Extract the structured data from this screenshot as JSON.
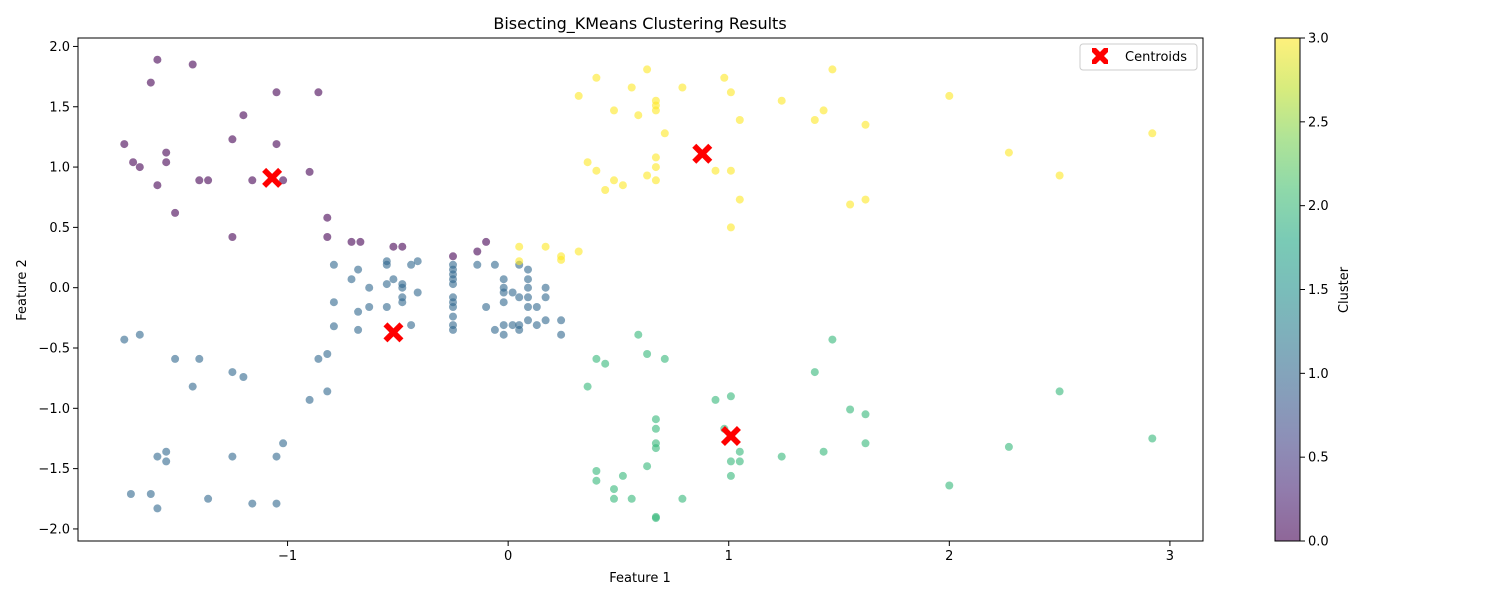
{
  "chart_data": {
    "type": "scatter",
    "title": "Bisecting_KMeans Clustering Results",
    "xlabel": "Feature 1",
    "ylabel": "Feature 2",
    "xlim": [
      -1.95,
      3.15
    ],
    "ylim": [
      -2.1,
      2.07
    ],
    "xticks": [
      -1,
      0,
      1,
      2,
      3
    ],
    "yticks": [
      -2.0,
      -1.5,
      -1.0,
      -0.5,
      0.0,
      0.5,
      1.0,
      1.5,
      2.0
    ],
    "grid": false,
    "legend": {
      "position": "top-right",
      "entries": [
        "Centroids"
      ]
    },
    "colorbar": {
      "label": "Cluster",
      "range": [
        0.0,
        3.0
      ],
      "ticks": [
        "0.0",
        "0.5",
        "1.0",
        "1.5",
        "2.0",
        "2.5",
        "3.0"
      ],
      "colormap": "viridis"
    },
    "colors": {
      "cluster_0": "#440154",
      "cluster_1": "#31688e",
      "cluster_2": "#35b779",
      "cluster_3": "#fde725",
      "centroid": "#ff0000"
    },
    "series": [
      {
        "cluster": 0,
        "points": [
          [
            -1.59,
            1.89
          ],
          [
            -1.43,
            1.85
          ],
          [
            -1.62,
            1.7
          ],
          [
            -1.05,
            1.62
          ],
          [
            -0.86,
            1.62
          ],
          [
            -1.2,
            1.43
          ],
          [
            -1.74,
            1.19
          ],
          [
            -1.25,
            1.23
          ],
          [
            -1.05,
            1.19
          ],
          [
            -1.55,
            1.12
          ],
          [
            -1.7,
            1.04
          ],
          [
            -1.67,
            1.0
          ],
          [
            -1.55,
            1.04
          ],
          [
            -1.59,
            0.85
          ],
          [
            -1.4,
            0.89
          ],
          [
            -1.36,
            0.89
          ],
          [
            -1.16,
            0.89
          ],
          [
            -1.02,
            0.89
          ],
          [
            -0.9,
            0.96
          ],
          [
            -1.51,
            0.62
          ],
          [
            -0.82,
            0.58
          ],
          [
            -1.25,
            0.42
          ],
          [
            -0.82,
            0.42
          ],
          [
            -0.71,
            0.38
          ],
          [
            -0.67,
            0.38
          ],
          [
            -0.52,
            0.34
          ],
          [
            -0.48,
            0.34
          ],
          [
            -0.25,
            0.26
          ],
          [
            -0.1,
            0.38
          ],
          [
            -0.14,
            0.3
          ]
        ]
      },
      {
        "cluster": 1,
        "points": [
          [
            -0.55,
            0.22
          ],
          [
            -0.41,
            0.22
          ],
          [
            -0.79,
            0.19
          ],
          [
            -0.55,
            0.19
          ],
          [
            -0.44,
            0.19
          ],
          [
            -0.68,
            0.15
          ],
          [
            -0.71,
            0.07
          ],
          [
            -0.63,
            0.0
          ],
          [
            -0.55,
            0.03
          ],
          [
            -0.52,
            0.07
          ],
          [
            -0.48,
            0.03
          ],
          [
            -0.48,
            0.0
          ],
          [
            -0.41,
            -0.04
          ],
          [
            -0.48,
            -0.08
          ],
          [
            -0.48,
            -0.12
          ],
          [
            -0.63,
            -0.16
          ],
          [
            -0.55,
            -0.16
          ],
          [
            -0.68,
            -0.2
          ],
          [
            -0.79,
            -0.12
          ],
          [
            -0.79,
            -0.32
          ],
          [
            -0.68,
            -0.35
          ],
          [
            -0.44,
            -0.31
          ],
          [
            -0.25,
            0.19
          ],
          [
            -0.25,
            0.15
          ],
          [
            -0.25,
            0.11
          ],
          [
            -0.25,
            0.07
          ],
          [
            -0.25,
            0.03
          ],
          [
            -0.25,
            -0.08
          ],
          [
            -0.25,
            -0.12
          ],
          [
            -0.25,
            -0.16
          ],
          [
            -0.25,
            -0.24
          ],
          [
            -0.25,
            -0.31
          ],
          [
            -0.25,
            -0.35
          ],
          [
            -0.14,
            0.19
          ],
          [
            -0.06,
            0.19
          ],
          [
            -0.1,
            -0.16
          ],
          [
            -0.02,
            0.07
          ],
          [
            -0.02,
            0.0
          ],
          [
            -0.02,
            -0.04
          ],
          [
            -0.02,
            -0.12
          ],
          [
            -0.02,
            -0.31
          ],
          [
            -0.02,
            -0.39
          ],
          [
            -0.06,
            -0.35
          ],
          [
            0.02,
            -0.04
          ],
          [
            0.02,
            -0.31
          ],
          [
            0.05,
            0.19
          ],
          [
            0.05,
            -0.08
          ],
          [
            0.05,
            -0.31
          ],
          [
            0.05,
            -0.35
          ],
          [
            0.09,
            0.15
          ],
          [
            0.09,
            0.07
          ],
          [
            0.09,
            0.0
          ],
          [
            0.09,
            -0.08
          ],
          [
            0.09,
            -0.16
          ],
          [
            0.09,
            -0.27
          ],
          [
            0.13,
            -0.16
          ],
          [
            0.13,
            -0.31
          ],
          [
            0.17,
            0.0
          ],
          [
            0.17,
            -0.08
          ],
          [
            0.17,
            -0.27
          ],
          [
            0.24,
            -0.27
          ],
          [
            0.24,
            -0.39
          ],
          [
            -1.74,
            -0.43
          ],
          [
            -1.67,
            -0.39
          ],
          [
            -1.51,
            -0.59
          ],
          [
            -1.4,
            -0.59
          ],
          [
            -1.43,
            -0.82
          ],
          [
            -1.25,
            -0.7
          ],
          [
            -1.2,
            -0.74
          ],
          [
            -0.86,
            -0.59
          ],
          [
            -0.82,
            -0.55
          ],
          [
            -0.82,
            -0.86
          ],
          [
            -0.9,
            -0.93
          ],
          [
            -1.02,
            -1.29
          ],
          [
            -1.05,
            -1.4
          ],
          [
            -1.25,
            -1.4
          ],
          [
            -1.59,
            -1.4
          ],
          [
            -1.55,
            -1.36
          ],
          [
            -1.55,
            -1.44
          ],
          [
            -1.71,
            -1.71
          ],
          [
            -1.62,
            -1.71
          ],
          [
            -1.36,
            -1.75
          ],
          [
            -1.16,
            -1.79
          ],
          [
            -1.05,
            -1.79
          ],
          [
            -1.59,
            -1.83
          ]
        ]
      },
      {
        "cluster": 2,
        "points": [
          [
            0.59,
            -0.39
          ],
          [
            0.63,
            -0.55
          ],
          [
            0.71,
            -0.59
          ],
          [
            0.4,
            -0.59
          ],
          [
            0.44,
            -0.63
          ],
          [
            0.36,
            -0.82
          ],
          [
            1.47,
            -0.43
          ],
          [
            1.39,
            -0.7
          ],
          [
            1.01,
            -0.9
          ],
          [
            0.94,
            -0.93
          ],
          [
            1.55,
            -1.01
          ],
          [
            1.62,
            -1.05
          ],
          [
            2.5,
            -0.86
          ],
          [
            0.67,
            -1.09
          ],
          [
            0.67,
            -1.17
          ],
          [
            0.98,
            -1.17
          ],
          [
            0.67,
            -1.29
          ],
          [
            0.67,
            -1.33
          ],
          [
            1.62,
            -1.29
          ],
          [
            2.27,
            -1.32
          ],
          [
            2.92,
            -1.25
          ],
          [
            1.05,
            -1.36
          ],
          [
            1.43,
            -1.36
          ],
          [
            1.24,
            -1.4
          ],
          [
            1.01,
            -1.44
          ],
          [
            1.05,
            -1.44
          ],
          [
            0.63,
            -1.48
          ],
          [
            0.4,
            -1.52
          ],
          [
            0.52,
            -1.56
          ],
          [
            1.01,
            -1.56
          ],
          [
            0.4,
            -1.6
          ],
          [
            2.0,
            -1.64
          ],
          [
            0.48,
            -1.67
          ],
          [
            0.48,
            -1.75
          ],
          [
            0.56,
            -1.75
          ],
          [
            0.79,
            -1.75
          ],
          [
            0.67,
            -1.9
          ],
          [
            0.67,
            -1.91
          ]
        ]
      },
      {
        "cluster": 3,
        "points": [
          [
            0.4,
            1.74
          ],
          [
            0.98,
            1.74
          ],
          [
            0.63,
            1.81
          ],
          [
            1.47,
            1.81
          ],
          [
            0.56,
            1.66
          ],
          [
            0.79,
            1.66
          ],
          [
            1.01,
            1.62
          ],
          [
            0.32,
            1.59
          ],
          [
            0.67,
            1.55
          ],
          [
            0.67,
            1.51
          ],
          [
            0.67,
            1.47
          ],
          [
            0.48,
            1.47
          ],
          [
            0.59,
            1.43
          ],
          [
            1.24,
            1.55
          ],
          [
            1.43,
            1.47
          ],
          [
            1.39,
            1.39
          ],
          [
            1.05,
            1.39
          ],
          [
            1.62,
            1.35
          ],
          [
            2.0,
            1.59
          ],
          [
            2.92,
            1.28
          ],
          [
            0.71,
            1.28
          ],
          [
            2.27,
            1.12
          ],
          [
            0.67,
            1.08
          ],
          [
            0.36,
            1.04
          ],
          [
            0.4,
            0.97
          ],
          [
            0.67,
            1.0
          ],
          [
            0.94,
            0.97
          ],
          [
            1.01,
            0.97
          ],
          [
            2.5,
            0.93
          ],
          [
            0.63,
            0.93
          ],
          [
            0.48,
            0.89
          ],
          [
            0.67,
            0.89
          ],
          [
            0.52,
            0.85
          ],
          [
            0.44,
            0.81
          ],
          [
            1.05,
            0.73
          ],
          [
            1.62,
            0.73
          ],
          [
            1.55,
            0.69
          ],
          [
            1.01,
            0.5
          ],
          [
            0.05,
            0.34
          ],
          [
            0.17,
            0.34
          ],
          [
            0.32,
            0.3
          ],
          [
            0.24,
            0.26
          ],
          [
            0.24,
            0.23
          ],
          [
            0.05,
            0.22
          ]
        ]
      }
    ],
    "centroids": [
      [
        -1.07,
        0.91
      ],
      [
        -0.52,
        -0.37
      ],
      [
        1.01,
        -1.23
      ],
      [
        0.88,
        1.11
      ]
    ]
  }
}
